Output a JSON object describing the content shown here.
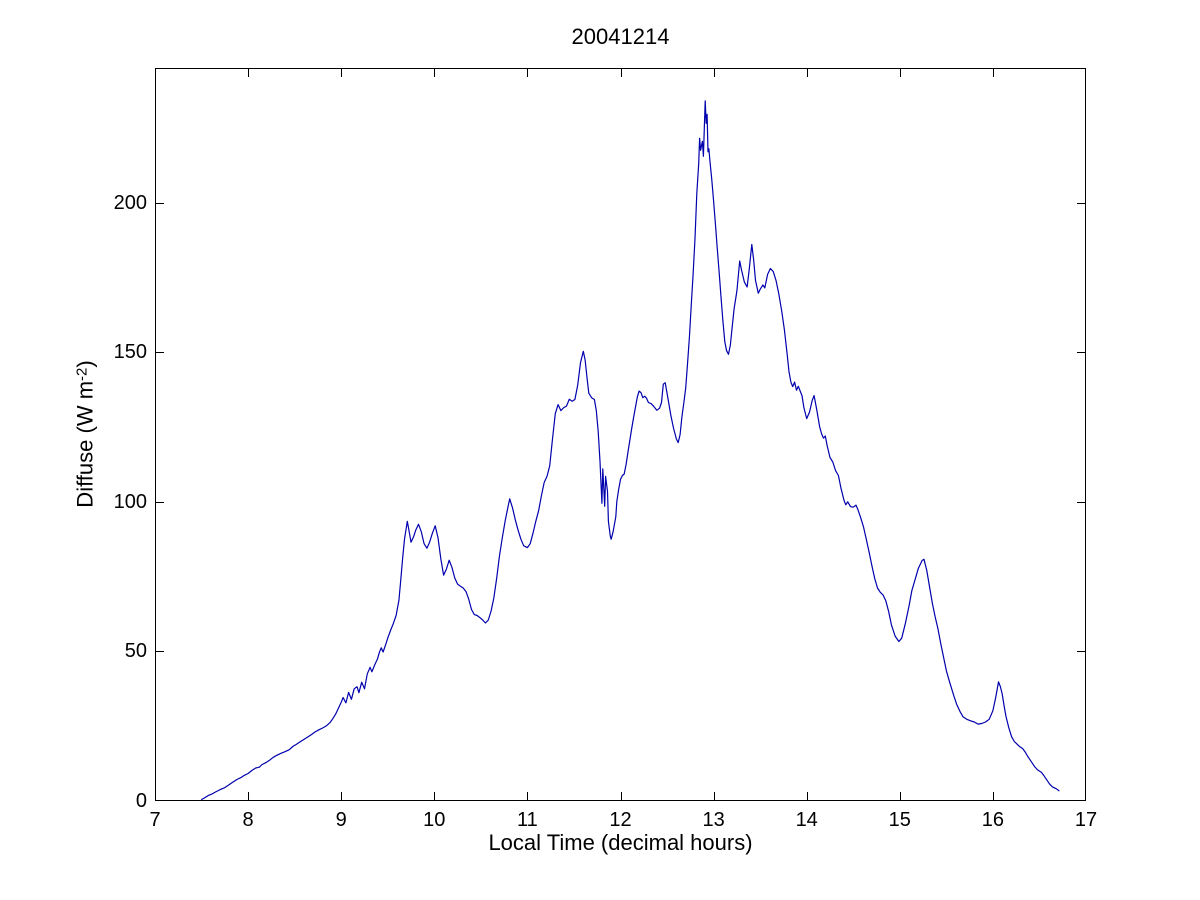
{
  "figure": {
    "background": "#ffffff",
    "frame_color": "#000000",
    "tick_label_color": "#000000"
  },
  "chart_data": {
    "type": "line",
    "title": "20041214",
    "xlabel": "Local Time (decimal hours)",
    "ylabel": {
      "pre": "Diffuse (W m",
      "sup": "-2",
      "post": ")"
    },
    "xlim": [
      7,
      17
    ],
    "ylim": [
      0,
      245
    ],
    "xticks": [
      7,
      8,
      9,
      10,
      11,
      12,
      13,
      14,
      15,
      16,
      17
    ],
    "yticks": [
      0,
      50,
      100,
      150,
      200
    ],
    "grid": false,
    "legend_position": "none",
    "line_color": "#0000AD",
    "series": [
      {
        "name": "Diffuse",
        "x": [
          7.5,
          7.53,
          7.57,
          7.61,
          7.65,
          7.7,
          7.74,
          7.79,
          7.83,
          7.88,
          7.92,
          7.96,
          8.0,
          8.04,
          8.08,
          8.12,
          8.15,
          8.19,
          8.23,
          8.27,
          8.31,
          8.35,
          8.39,
          8.44,
          8.48,
          8.52,
          8.56,
          8.6,
          8.64,
          8.68,
          8.72,
          8.76,
          8.8,
          8.84,
          8.88,
          8.91,
          8.94,
          8.97,
          9.0,
          9.02,
          9.05,
          9.08,
          9.11,
          9.14,
          9.17,
          9.19,
          9.22,
          9.25,
          9.28,
          9.31,
          9.33,
          9.36,
          9.39,
          9.41,
          9.43,
          9.45,
          9.48,
          9.5,
          9.53,
          9.56,
          9.59,
          9.62,
          9.64,
          9.66,
          9.68,
          9.71,
          9.73,
          9.75,
          9.78,
          9.8,
          9.83,
          9.86,
          9.89,
          9.92,
          9.95,
          9.98,
          10.01,
          10.04,
          10.07,
          10.1,
          10.13,
          10.16,
          10.19,
          10.22,
          10.25,
          10.28,
          10.31,
          10.34,
          10.37,
          10.4,
          10.43,
          10.46,
          10.49,
          10.52,
          10.55,
          10.58,
          10.61,
          10.64,
          10.67,
          10.7,
          10.73,
          10.76,
          10.79,
          10.81,
          10.84,
          10.87,
          10.9,
          10.93,
          10.96,
          11.0,
          11.03,
          11.06,
          11.09,
          11.12,
          11.15,
          11.18,
          11.21,
          11.24,
          11.27,
          11.3,
          11.33,
          11.36,
          11.39,
          11.42,
          11.45,
          11.48,
          11.51,
          11.54,
          11.57,
          11.6,
          11.62,
          11.64,
          11.66,
          11.69,
          11.72,
          11.74,
          11.76,
          11.78,
          11.8,
          11.81,
          11.83,
          11.84,
          11.86,
          11.87,
          11.89,
          11.9,
          11.92,
          11.95,
          11.96,
          11.98,
          12.0,
          12.02,
          12.04,
          12.06,
          12.08,
          12.1,
          12.12,
          12.14,
          12.16,
          12.18,
          12.2,
          12.22,
          12.24,
          12.26,
          12.28,
          12.3,
          12.33,
          12.36,
          12.39,
          12.42,
          12.44,
          12.46,
          12.48,
          12.51,
          12.54,
          12.57,
          12.6,
          12.62,
          12.64,
          12.66,
          12.68,
          12.7,
          12.72,
          12.74,
          12.76,
          12.78,
          12.8,
          12.82,
          12.84,
          12.85,
          12.86,
          12.88,
          12.89,
          12.91,
          12.92,
          12.93,
          12.94,
          12.95,
          12.96,
          12.98,
          13.0,
          13.02,
          13.04,
          13.06,
          13.08,
          13.1,
          13.12,
          13.14,
          13.16,
          13.18,
          13.2,
          13.22,
          13.25,
          13.28,
          13.3,
          13.33,
          13.36,
          13.38,
          13.41,
          13.43,
          13.45,
          13.48,
          13.5,
          13.53,
          13.55,
          13.58,
          13.61,
          13.64,
          13.67,
          13.7,
          13.73,
          13.76,
          13.79,
          13.81,
          13.83,
          13.85,
          13.87,
          13.89,
          13.91,
          13.93,
          13.95,
          13.97,
          14.0,
          14.03,
          14.06,
          14.08,
          14.11,
          14.14,
          14.16,
          14.18,
          14.2,
          14.22,
          14.25,
          14.28,
          14.31,
          14.34,
          14.37,
          14.4,
          14.42,
          14.44,
          14.47,
          14.5,
          14.53,
          14.55,
          14.58,
          14.61,
          14.64,
          14.67,
          14.7,
          14.73,
          14.76,
          14.79,
          14.82,
          14.85,
          14.88,
          14.91,
          14.95,
          14.99,
          15.02,
          15.06,
          15.1,
          15.13,
          15.17,
          15.2,
          15.24,
          15.26,
          15.29,
          15.32,
          15.35,
          15.38,
          15.41,
          15.44,
          15.47,
          15.5,
          15.54,
          15.58,
          15.61,
          15.65,
          15.68,
          15.72,
          15.76,
          15.8,
          15.84,
          15.88,
          15.92,
          15.96,
          16.0,
          16.03,
          16.06,
          16.08,
          16.1,
          16.12,
          16.14,
          16.17,
          16.2,
          16.23,
          16.26,
          16.29,
          16.32,
          16.35,
          16.38,
          16.42,
          16.45,
          16.48,
          16.52,
          16.55,
          16.58,
          16.61,
          16.64,
          16.68,
          16.71
        ],
        "y": [
          0.5,
          1.0,
          1.8,
          2.3,
          3.0,
          3.8,
          4.3,
          5.3,
          6.2,
          7.2,
          7.8,
          8.6,
          9.2,
          10.2,
          11.0,
          11.3,
          12.2,
          12.8,
          13.6,
          14.6,
          15.3,
          15.9,
          16.4,
          17.1,
          18.2,
          19.0,
          19.8,
          20.6,
          21.4,
          22.2,
          23.1,
          23.8,
          24.4,
          25.1,
          26.2,
          27.5,
          29.0,
          31.0,
          33.0,
          34.6,
          32.8,
          36.3,
          34.0,
          37.5,
          38.2,
          36.2,
          39.7,
          37.5,
          42.5,
          44.7,
          43.2,
          45.5,
          47.5,
          49.7,
          51.2,
          49.8,
          52.5,
          54.5,
          57.0,
          59.3,
          62.0,
          67.0,
          74.0,
          81.0,
          87.5,
          93.5,
          90.0,
          86.5,
          88.5,
          90.5,
          92.5,
          90.0,
          86.0,
          84.5,
          86.5,
          89.5,
          92.0,
          88.0,
          81.0,
          75.5,
          77.5,
          80.5,
          78.0,
          74.5,
          72.5,
          71.8,
          71.2,
          70.0,
          67.5,
          64.0,
          62.3,
          62.0,
          61.3,
          60.5,
          59.5,
          60.5,
          63.5,
          68.0,
          74.5,
          82.0,
          88.0,
          93.5,
          98.0,
          101.0,
          98.0,
          94.0,
          90.5,
          87.5,
          85.3,
          84.7,
          86.0,
          89.5,
          93.5,
          97.0,
          102.0,
          106.5,
          108.5,
          112.0,
          121.0,
          129.5,
          132.5,
          130.5,
          131.5,
          132.0,
          134.3,
          133.6,
          134.2,
          139.0,
          146.5,
          150.3,
          147.5,
          141.5,
          136.3,
          134.8,
          134.2,
          130.5,
          123.5,
          113.5,
          99.5,
          111.0,
          98.5,
          108.5,
          103.5,
          93.5,
          88.5,
          87.5,
          90.0,
          95.0,
          100.0,
          104.0,
          107.5,
          108.8,
          109.3,
          112.5,
          116.5,
          120.5,
          124.5,
          128.0,
          131.5,
          135.0,
          137.0,
          136.5,
          134.8,
          135.3,
          134.6,
          133.2,
          132.8,
          131.8,
          130.6,
          131.3,
          133.2,
          139.3,
          139.8,
          134.5,
          129.0,
          124.5,
          121.0,
          119.8,
          122.5,
          128.3,
          133.0,
          138.0,
          146.0,
          155.0,
          166.0,
          176.0,
          188.0,
          203.0,
          213.0,
          221.5,
          217.5,
          220.5,
          215.5,
          234.0,
          226.5,
          229.5,
          217.0,
          218.0,
          214.0,
          208.0,
          200.5,
          192.5,
          184.5,
          176.5,
          168.5,
          160.5,
          153.5,
          150.5,
          149.3,
          152.5,
          158.5,
          164.5,
          170.5,
          180.5,
          177.5,
          173.5,
          171.8,
          177.0,
          186.0,
          181.0,
          174.0,
          169.7,
          171.0,
          172.5,
          171.5,
          176.0,
          178.0,
          177.0,
          174.0,
          169.5,
          164.0,
          157.5,
          149.5,
          143.5,
          140.0,
          138.5,
          140.0,
          137.3,
          138.6,
          137.0,
          135.5,
          131.5,
          127.8,
          130.0,
          134.0,
          135.5,
          130.5,
          125.0,
          122.7,
          121.3,
          122.0,
          118.7,
          114.8,
          113.3,
          110.4,
          108.8,
          104.4,
          100.6,
          99.0,
          100.0,
          98.4,
          98.2,
          98.9,
          97.4,
          94.7,
          91.6,
          87.5,
          83.2,
          78.6,
          74.4,
          71.2,
          69.8,
          68.9,
          66.9,
          63.4,
          58.9,
          55.1,
          53.3,
          54.4,
          59.4,
          65.3,
          70.4,
          74.6,
          77.8,
          80.4,
          80.8,
          77.0,
          71.5,
          66.0,
          61.5,
          57.5,
          52.5,
          48.0,
          43.5,
          39.2,
          35.2,
          32.4,
          29.7,
          28.1,
          27.3,
          26.8,
          26.4,
          25.7,
          25.9,
          26.4,
          27.3,
          30.2,
          34.6,
          39.8,
          38.3,
          35.8,
          31.8,
          28.4,
          24.6,
          21.6,
          19.9,
          19.0,
          18.1,
          17.5,
          16.2,
          14.6,
          12.8,
          11.4,
          10.4,
          9.6,
          8.4,
          7.0,
          5.6,
          4.7,
          4.1,
          3.4
        ]
      }
    ]
  }
}
